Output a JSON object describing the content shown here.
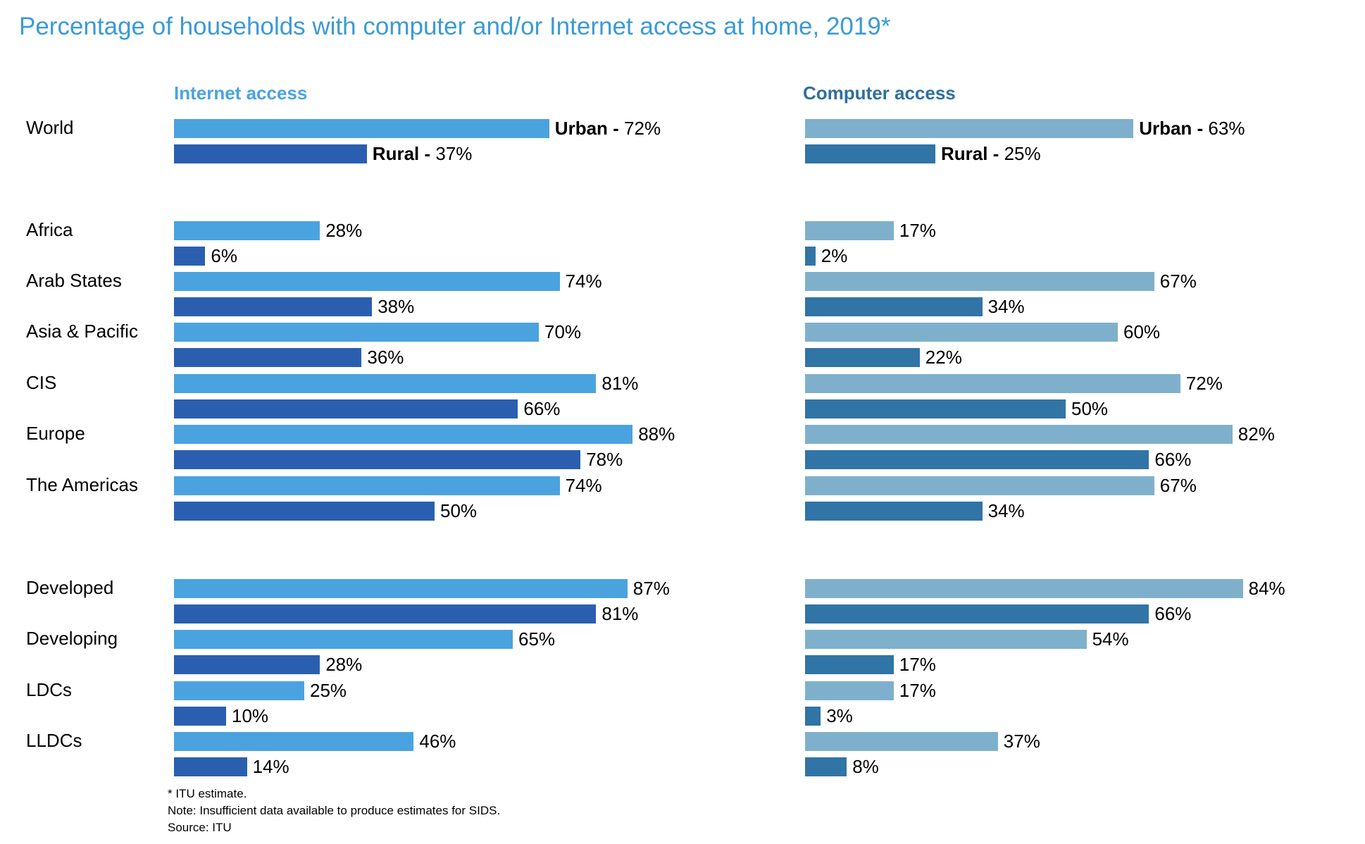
{
  "chart_data": {
    "type": "bar",
    "title": "Percentage of households with computer and/or Internet access at home, 2019*",
    "categories": [
      "World",
      "Africa",
      "Arab States",
      "Asia & Pacific",
      "CIS",
      "Europe",
      "The Americas",
      "Developed",
      "Developing",
      "LDCs",
      "LLDCs"
    ],
    "panels": [
      {
        "name": "Internet access",
        "series": [
          {
            "name": "Urban",
            "color": "#4aa3df",
            "values": [
              72,
              28,
              74,
              70,
              81,
              88,
              74,
              87,
              65,
              25,
              46
            ]
          },
          {
            "name": "Rural",
            "color": "#2a5fb0",
            "values": [
              37,
              6,
              38,
              36,
              66,
              78,
              50,
              81,
              28,
              10,
              14
            ]
          }
        ]
      },
      {
        "name": "Computer access",
        "series": [
          {
            "name": "Urban",
            "color": "#7fb0cb",
            "values": [
              63,
              17,
              67,
              60,
              72,
              82,
              67,
              84,
              54,
              17,
              37
            ]
          },
          {
            "name": "Rural",
            "color": "#3174a6",
            "values": [
              25,
              2,
              34,
              22,
              50,
              66,
              34,
              66,
              17,
              3,
              8
            ]
          }
        ]
      }
    ],
    "xlim": [
      0,
      100
    ],
    "unit": "%",
    "footnotes": {
      "estimate": "* ITU estimate.",
      "note": "Note: Insufficient data available to produce estimates for SIDS.",
      "source": "Source: ITU"
    }
  }
}
